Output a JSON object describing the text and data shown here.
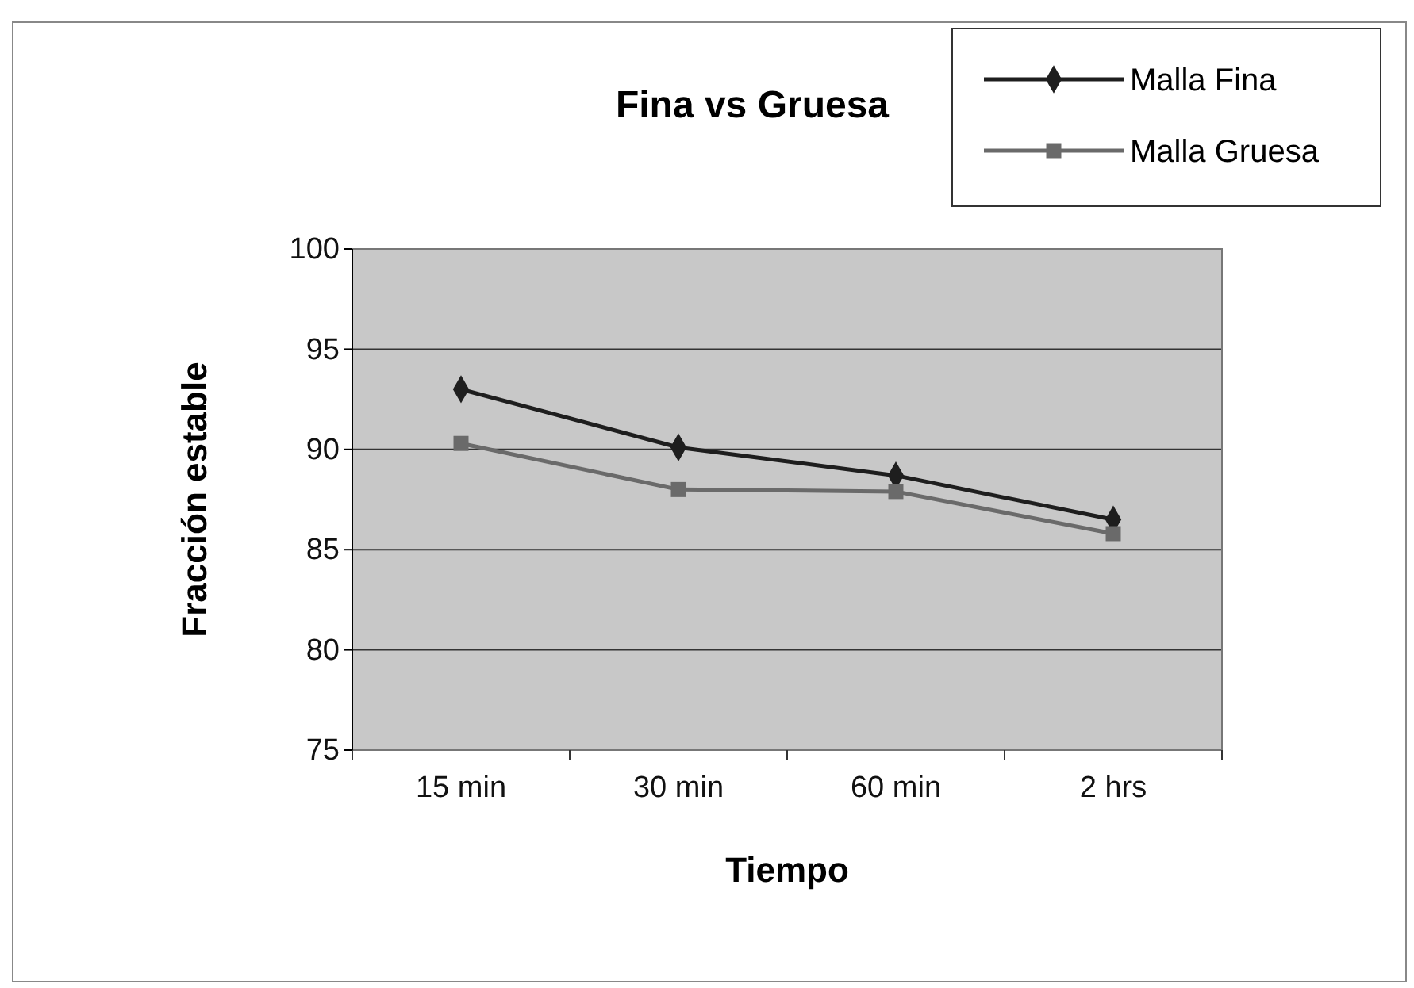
{
  "chart_data": {
    "type": "line",
    "title": "Fina vs Gruesa",
    "xlabel": "Tiempo",
    "ylabel": "Fracción estable",
    "categories": [
      "15 min",
      "30 min",
      "60 min",
      "2 hrs"
    ],
    "series": [
      {
        "name": "Malla Fina",
        "color": "#1e1e1e",
        "marker": "diamond",
        "values": [
          93.0,
          90.1,
          88.7,
          86.5
        ]
      },
      {
        "name": "Malla Gruesa",
        "color": "#6a6a6a",
        "marker": "square",
        "values": [
          90.3,
          88.0,
          87.9,
          85.8
        ]
      }
    ],
    "ylim": [
      75,
      100
    ],
    "yticks": [
      75,
      80,
      85,
      90,
      95,
      100
    ],
    "grid": "y",
    "legend": "top right",
    "line_style": "solid"
  }
}
